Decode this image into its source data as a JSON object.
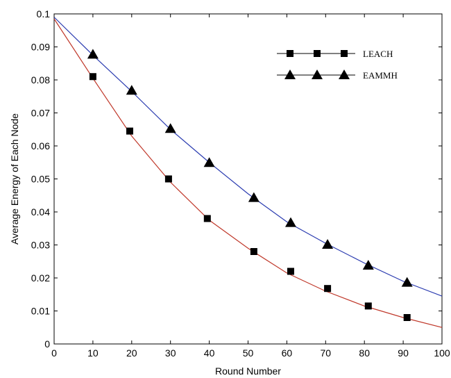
{
  "chart_data": {
    "type": "line",
    "title": "",
    "xlabel": "Round Number",
    "ylabel": "Average Energy of Each Node",
    "xlim": [
      0,
      100
    ],
    "ylim": [
      0,
      0.1
    ],
    "xticks": [
      "0",
      "10",
      "20",
      "30",
      "40",
      "50",
      "60",
      "70",
      "80",
      "90",
      "100"
    ],
    "yticks": [
      "0",
      "0.01",
      "0.02",
      "0.03",
      "0.04",
      "0.05",
      "0.06",
      "0.07",
      "0.08",
      "0.09",
      "0.1"
    ],
    "grid": false,
    "legend_position": "top-right",
    "series": [
      {
        "name": "LEACH",
        "line_color": "#c0392b",
        "marker": "square",
        "line_x": [
          0,
          10,
          20,
          30,
          40,
          50,
          60,
          70,
          80,
          90,
          100
        ],
        "line_y": [
          0.0985,
          0.0805,
          0.063,
          0.049,
          0.0375,
          0.029,
          0.0215,
          0.016,
          0.0115,
          0.008,
          0.005
        ],
        "marker_x": [
          10,
          19.5,
          29.5,
          39.5,
          51.5,
          61,
          70.5,
          81,
          91
        ],
        "marker_y": [
          0.081,
          0.0645,
          0.05,
          0.038,
          0.028,
          0.022,
          0.0168,
          0.0115,
          0.008
        ]
      },
      {
        "name": "EAMMH",
        "line_color": "#2a3bb0",
        "marker": "triangle",
        "line_x": [
          0,
          10,
          20,
          30,
          40,
          50,
          60,
          70,
          80,
          90,
          100
        ],
        "line_y": [
          0.099,
          0.0875,
          0.0765,
          0.065,
          0.055,
          0.0455,
          0.037,
          0.0305,
          0.0245,
          0.019,
          0.0145
        ],
        "marker_x": [
          10,
          20,
          30,
          40,
          51.5,
          61,
          70.5,
          81,
          91
        ],
        "marker_y": [
          0.0877,
          0.0768,
          0.0652,
          0.0549,
          0.0443,
          0.0367,
          0.0301,
          0.0238,
          0.0186
        ]
      }
    ]
  }
}
